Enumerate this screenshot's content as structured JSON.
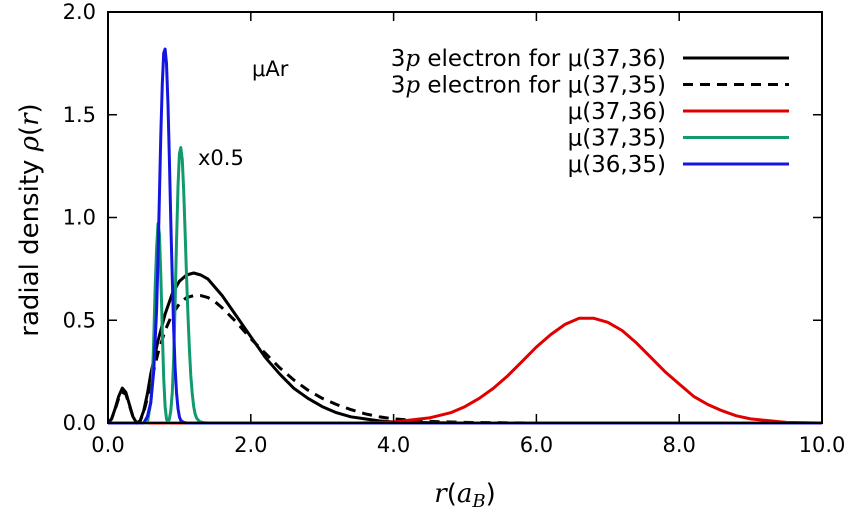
{
  "chart_data": {
    "type": "line",
    "title": "",
    "xlabel": "r(a_B)",
    "xlabel_parts": {
      "main": "r",
      "open": "(",
      "sym": "a",
      "sub": "B",
      "close": ")"
    },
    "ylabel": "radial density ρ(r)",
    "ylabel_parts": {
      "text": "radial density ",
      "sym": "ρ",
      "open": "(",
      "var": "r",
      "close": ")"
    },
    "xlim": [
      0,
      10
    ],
    "ylim": [
      0,
      2
    ],
    "xticks": [
      0,
      2,
      4,
      6,
      8,
      10
    ],
    "xtick_labels": [
      "0.0",
      "2.0",
      "4.0",
      "6.0",
      "8.0",
      "10.0"
    ],
    "yticks": [
      0,
      0.5,
      1,
      1.5,
      2
    ],
    "ytick_labels": [
      "0.0",
      "0.5",
      "1.0",
      "1.5",
      "2.0"
    ],
    "grid": false,
    "legend_position": "top-right",
    "annotations": [
      {
        "text": "μAr",
        "x": 2.0,
        "y": 1.75
      },
      {
        "text": "x0.5",
        "x": 1.25,
        "y": 1.3
      }
    ],
    "series": [
      {
        "name_parts": {
          "prefix": "3",
          "italic": "p",
          "suffix": " electron for μ(37,36)"
        },
        "name": "3p electron for μ(37,36)",
        "color": "#000000",
        "dash": "solid",
        "x": [
          0,
          0.05,
          0.1,
          0.15,
          0.2,
          0.25,
          0.3,
          0.35,
          0.4,
          0.45,
          0.5,
          0.55,
          0.6,
          0.7,
          0.8,
          0.9,
          1.0,
          1.1,
          1.2,
          1.3,
          1.4,
          1.5,
          1.6,
          1.8,
          2.0,
          2.2,
          2.4,
          2.6,
          2.8,
          3.0,
          3.2,
          3.4,
          3.6,
          3.8,
          4.0,
          4.5,
          5.0,
          6.0,
          7.0,
          8.0,
          9.0,
          10.0
        ],
        "y": [
          0,
          0.02,
          0.07,
          0.13,
          0.17,
          0.15,
          0.09,
          0.03,
          0.0,
          0.01,
          0.06,
          0.14,
          0.24,
          0.4,
          0.53,
          0.63,
          0.69,
          0.72,
          0.73,
          0.72,
          0.7,
          0.66,
          0.62,
          0.52,
          0.42,
          0.32,
          0.24,
          0.17,
          0.12,
          0.08,
          0.05,
          0.03,
          0.02,
          0.01,
          0.005,
          0.002,
          0.0,
          0.0,
          0.0,
          0.0,
          0.0,
          0.0
        ]
      },
      {
        "name_parts": {
          "prefix": "3",
          "italic": "p",
          "suffix": " electron for μ(37,35)"
        },
        "name": "3p electron for μ(37,35)",
        "color": "#000000",
        "dash": "dashed",
        "x": [
          0,
          0.05,
          0.1,
          0.15,
          0.2,
          0.25,
          0.3,
          0.35,
          0.4,
          0.45,
          0.5,
          0.55,
          0.6,
          0.7,
          0.8,
          0.9,
          1.0,
          1.1,
          1.2,
          1.3,
          1.4,
          1.5,
          1.6,
          1.8,
          2.0,
          2.2,
          2.4,
          2.6,
          2.8,
          3.0,
          3.2,
          3.4,
          3.6,
          3.8,
          4.0,
          4.5,
          5.0,
          6.0,
          7.0,
          8.0,
          9.0,
          10.0
        ],
        "y": [
          0,
          0.02,
          0.065,
          0.12,
          0.15,
          0.14,
          0.085,
          0.03,
          0.0,
          0.01,
          0.05,
          0.12,
          0.2,
          0.34,
          0.45,
          0.53,
          0.58,
          0.61,
          0.62,
          0.62,
          0.61,
          0.59,
          0.56,
          0.49,
          0.41,
          0.34,
          0.27,
          0.21,
          0.16,
          0.12,
          0.09,
          0.065,
          0.045,
          0.03,
          0.02,
          0.008,
          0.003,
          0.0,
          0.0,
          0.0,
          0.0,
          0.0
        ]
      },
      {
        "name_parts": {
          "prefix": "",
          "italic": "",
          "suffix": "μ(37,36)"
        },
        "name": "μ(37,36)",
        "color": "#e00000",
        "dash": "solid",
        "x": [
          0,
          3.5,
          4.0,
          4.5,
          4.8,
          5.0,
          5.2,
          5.4,
          5.6,
          5.8,
          6.0,
          6.2,
          6.4,
          6.6,
          6.8,
          7.0,
          7.2,
          7.4,
          7.6,
          7.8,
          8.0,
          8.2,
          8.4,
          8.6,
          8.8,
          9.0,
          9.5,
          10.0
        ],
        "y": [
          0,
          0.0,
          0.005,
          0.025,
          0.05,
          0.08,
          0.12,
          0.17,
          0.23,
          0.3,
          0.37,
          0.43,
          0.48,
          0.51,
          0.51,
          0.49,
          0.45,
          0.39,
          0.32,
          0.25,
          0.19,
          0.13,
          0.09,
          0.06,
          0.035,
          0.02,
          0.003,
          0.0
        ]
      },
      {
        "name_parts": {
          "prefix": "",
          "italic": "",
          "suffix": "μ(37,35)"
        },
        "name": "μ(37,35)",
        "color": "#119a6e",
        "dash": "solid",
        "x": [
          0,
          0.55,
          0.6,
          0.62,
          0.64,
          0.66,
          0.68,
          0.7,
          0.72,
          0.74,
          0.76,
          0.78,
          0.8,
          0.82,
          0.84,
          0.86,
          0.88,
          0.9,
          0.92,
          0.94,
          0.96,
          0.98,
          1.0,
          1.02,
          1.04,
          1.06,
          1.08,
          1.1,
          1.12,
          1.14,
          1.16,
          1.18,
          1.2,
          1.22,
          1.24,
          1.28,
          1.32,
          1.36,
          1.4,
          1.5,
          10.0
        ],
        "y": [
          0,
          0.0,
          0.1,
          0.2,
          0.4,
          0.65,
          0.85,
          0.97,
          0.92,
          0.72,
          0.45,
          0.22,
          0.08,
          0.02,
          0.0,
          0.02,
          0.06,
          0.15,
          0.32,
          0.58,
          0.88,
          1.15,
          1.31,
          1.34,
          1.28,
          1.13,
          0.93,
          0.72,
          0.52,
          0.36,
          0.23,
          0.14,
          0.08,
          0.045,
          0.025,
          0.008,
          0.003,
          0.001,
          0.0,
          0.0,
          0.0
        ]
      },
      {
        "name_parts": {
          "prefix": "",
          "italic": "",
          "suffix": "μ(36,35)"
        },
        "name": "μ(36,35)",
        "color": "#1515e0",
        "dash": "solid",
        "x": [
          0,
          0.5,
          0.55,
          0.6,
          0.64,
          0.68,
          0.7,
          0.72,
          0.74,
          0.76,
          0.78,
          0.8,
          0.82,
          0.84,
          0.86,
          0.88,
          0.9,
          0.92,
          0.94,
          0.96,
          0.98,
          1.0,
          1.02,
          1.06,
          1.1,
          1.2,
          10.0
        ],
        "y": [
          0,
          0.0,
          0.03,
          0.1,
          0.25,
          0.55,
          0.8,
          1.1,
          1.4,
          1.65,
          1.8,
          1.82,
          1.75,
          1.55,
          1.28,
          0.98,
          0.7,
          0.45,
          0.27,
          0.15,
          0.07,
          0.03,
          0.012,
          0.003,
          0.0,
          0.0,
          0.0
        ]
      }
    ]
  }
}
